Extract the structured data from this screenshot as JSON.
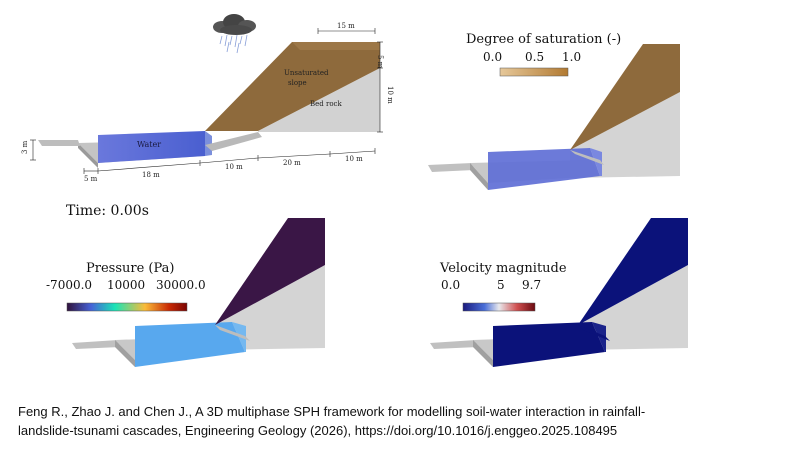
{
  "panel_schematic": {
    "labels": {
      "water": "Water",
      "unsaturated_line1": "Unsaturated",
      "unsaturated_line2": "slope",
      "bed_rock": "Bed rock"
    },
    "dimensions": {
      "top_width": "15 m",
      "right_upper": "5 m",
      "right_lower": "10 m",
      "left_height": "3 m",
      "bottom_5": "5 m",
      "bottom_18": "18 m",
      "bottom_10a": "10 m",
      "bottom_20": "20 m",
      "bottom_10b": "10 m"
    }
  },
  "time_label": "Time: 0.00s",
  "colorbars": {
    "saturation": {
      "title": "Degree of saturation (-)",
      "ticks": [
        "0.0",
        "0.5",
        "1.0"
      ],
      "colors": [
        "#e6c89a",
        "#b27a32"
      ]
    },
    "pressure": {
      "title": "Pressure (Pa)",
      "ticks": [
        "-7000.0",
        "10000",
        "30000.0"
      ],
      "colors": [
        "#30123b",
        "#4662d7",
        "#1ae4b6",
        "#fabb39",
        "#c92a04",
        "#7a0403"
      ]
    },
    "velocity": {
      "title": "Velocity magnitude",
      "ticks": [
        "0.0",
        "5",
        "9.7"
      ],
      "colors": [
        "#1a1a7e",
        "#4a6fd8",
        "#e8e8ec",
        "#d05050",
        "#6a0a10"
      ]
    }
  },
  "citation": {
    "line1": "Feng R., Zhao J. and Chen J., A 3D multiphase SPH framework for modelling soil-water interaction in rainfall-",
    "line2": "landslide-tsunami cascades, Engineering Geology (2026), https://doi.org/10.1016/j.enggeo.2025.108495"
  },
  "colors": {
    "soil": "#8e6a3c",
    "rock": "#d2d2d2",
    "water_pressure": "#58a8ee",
    "water_saturation": "#5f6fd6",
    "slope_pressure": "#3a1646",
    "velocity": "#0b127a"
  }
}
